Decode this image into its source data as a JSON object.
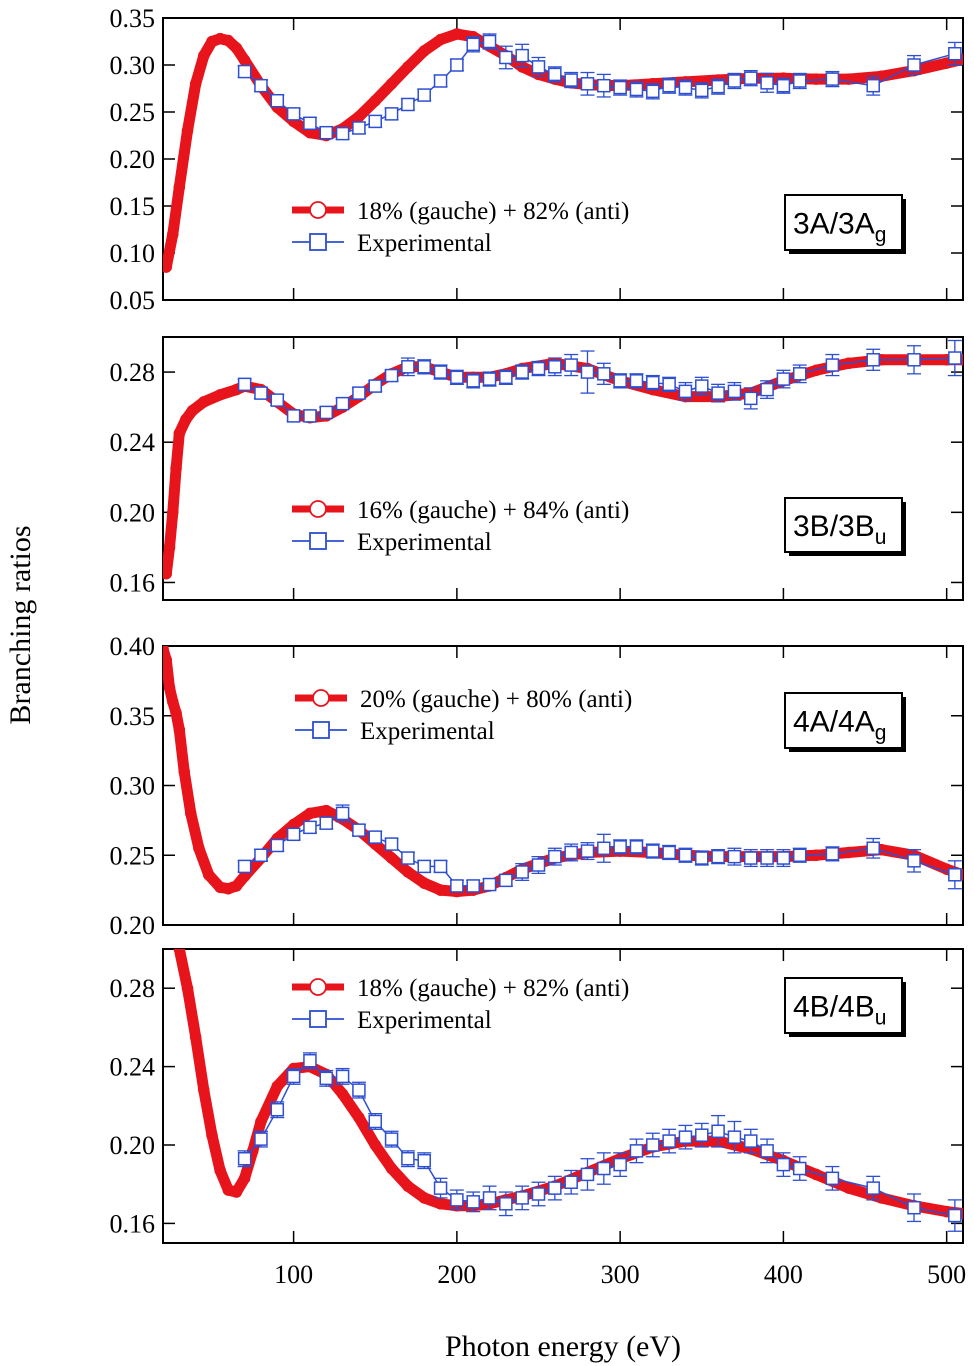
{
  "figure": {
    "ylabel": "Branching ratios",
    "xlabel": "Photon energy (eV)",
    "x_ticks": [
      100,
      200,
      300,
      400,
      500
    ],
    "xlim": [
      20,
      510
    ]
  },
  "colors": {
    "theory": "#e8141c",
    "experimental": "#2d4fd1",
    "frame": "#000000"
  },
  "chart_data": [
    {
      "type": "line",
      "panel": "3A/3Ag",
      "label_main": "3A/3A",
      "label_sub": "g",
      "ylim": [
        0.05,
        0.35
      ],
      "y_ticks": [
        "0.05",
        "0.10",
        "0.15",
        "0.20",
        "0.25",
        "0.30",
        "0.35"
      ],
      "legend_position": "center",
      "series": [
        {
          "name": "18% (gauche) + 82% (anti)",
          "marker": "circle",
          "x": [
            22,
            26,
            30,
            35,
            40,
            45,
            50,
            55,
            60,
            65,
            70,
            80,
            90,
            100,
            110,
            120,
            130,
            140,
            150,
            160,
            170,
            180,
            190,
            200,
            210,
            220,
            230,
            240,
            250,
            260,
            270,
            280,
            300,
            320,
            340,
            360,
            380,
            400,
            420,
            440,
            460,
            480,
            500,
            510
          ],
          "values": [
            0.085,
            0.12,
            0.17,
            0.23,
            0.28,
            0.31,
            0.325,
            0.328,
            0.326,
            0.318,
            0.305,
            0.278,
            0.255,
            0.24,
            0.228,
            0.225,
            0.232,
            0.245,
            0.262,
            0.28,
            0.298,
            0.315,
            0.327,
            0.333,
            0.33,
            0.32,
            0.31,
            0.298,
            0.29,
            0.285,
            0.281,
            0.279,
            0.278,
            0.28,
            0.282,
            0.284,
            0.286,
            0.286,
            0.285,
            0.285,
            0.288,
            0.294,
            0.302,
            0.306
          ]
        },
        {
          "name": "Experimental",
          "marker": "square",
          "x": [
            70,
            80,
            90,
            100,
            110,
            120,
            130,
            140,
            150,
            160,
            170,
            180,
            190,
            200,
            210,
            220,
            230,
            240,
            250,
            260,
            270,
            280,
            290,
            300,
            310,
            320,
            330,
            340,
            350,
            360,
            370,
            380,
            390,
            400,
            410,
            430,
            455,
            480,
            505
          ],
          "values": [
            0.293,
            0.278,
            0.262,
            0.248,
            0.238,
            0.228,
            0.227,
            0.233,
            0.24,
            0.248,
            0.258,
            0.268,
            0.283,
            0.3,
            0.322,
            0.325,
            0.308,
            0.31,
            0.298,
            0.29,
            0.284,
            0.28,
            0.278,
            0.276,
            0.274,
            0.272,
            0.278,
            0.276,
            0.273,
            0.277,
            0.283,
            0.286,
            0.281,
            0.278,
            0.283,
            0.285,
            0.278,
            0.3,
            0.312
          ],
          "errors": [
            0.006,
            0.006,
            0.006,
            0.006,
            0.006,
            0.006,
            0.006,
            0.006,
            0.006,
            0.006,
            0.006,
            0.006,
            0.006,
            0.006,
            0.008,
            0.008,
            0.012,
            0.012,
            0.01,
            0.008,
            0.008,
            0.012,
            0.012,
            0.008,
            0.008,
            0.008,
            0.008,
            0.008,
            0.008,
            0.008,
            0.008,
            0.008,
            0.01,
            0.008,
            0.008,
            0.008,
            0.01,
            0.01,
            0.012
          ]
        }
      ]
    },
    {
      "type": "line",
      "panel": "3B/3Bu",
      "label_main": "3B/3B",
      "label_sub": "u",
      "ylim": [
        0.15,
        0.3
      ],
      "y_ticks": [
        "0.16",
        "0.20",
        "0.24",
        "0.28"
      ],
      "legend_position": "center",
      "series": [
        {
          "name": "16% (gauche) + 84% (anti)",
          "marker": "circle",
          "x": [
            22,
            24,
            26,
            28,
            30,
            34,
            38,
            45,
            55,
            65,
            70,
            80,
            90,
            100,
            110,
            120,
            130,
            140,
            150,
            160,
            170,
            180,
            190,
            200,
            210,
            220,
            230,
            240,
            260,
            280,
            300,
            320,
            340,
            360,
            380,
            400,
            420,
            440,
            460,
            480,
            500,
            510
          ],
          "values": [
            0.165,
            0.18,
            0.2,
            0.225,
            0.245,
            0.253,
            0.258,
            0.263,
            0.267,
            0.27,
            0.272,
            0.27,
            0.263,
            0.256,
            0.254,
            0.255,
            0.26,
            0.266,
            0.273,
            0.279,
            0.283,
            0.283,
            0.28,
            0.277,
            0.277,
            0.277,
            0.279,
            0.282,
            0.285,
            0.282,
            0.275,
            0.27,
            0.266,
            0.266,
            0.268,
            0.275,
            0.281,
            0.285,
            0.287,
            0.287,
            0.287,
            0.287
          ]
        },
        {
          "name": "Experimental",
          "marker": "square",
          "x": [
            70,
            80,
            90,
            100,
            110,
            120,
            130,
            140,
            150,
            160,
            170,
            180,
            190,
            200,
            210,
            220,
            230,
            240,
            250,
            260,
            270,
            280,
            290,
            300,
            310,
            320,
            330,
            340,
            350,
            360,
            370,
            380,
            390,
            400,
            410,
            430,
            455,
            480,
            505
          ],
          "values": [
            0.273,
            0.268,
            0.264,
            0.255,
            0.255,
            0.257,
            0.262,
            0.268,
            0.272,
            0.278,
            0.283,
            0.283,
            0.28,
            0.277,
            0.275,
            0.276,
            0.277,
            0.28,
            0.282,
            0.283,
            0.284,
            0.28,
            0.279,
            0.275,
            0.275,
            0.274,
            0.273,
            0.269,
            0.272,
            0.268,
            0.269,
            0.265,
            0.27,
            0.276,
            0.279,
            0.284,
            0.287,
            0.287,
            0.288
          ],
          "errors": [
            0.003,
            0.003,
            0.003,
            0.003,
            0.003,
            0.003,
            0.003,
            0.003,
            0.003,
            0.003,
            0.005,
            0.004,
            0.004,
            0.004,
            0.004,
            0.004,
            0.004,
            0.004,
            0.004,
            0.005,
            0.006,
            0.012,
            0.006,
            0.004,
            0.004,
            0.004,
            0.004,
            0.005,
            0.005,
            0.005,
            0.005,
            0.006,
            0.005,
            0.005,
            0.005,
            0.006,
            0.006,
            0.008,
            0.01
          ]
        }
      ]
    },
    {
      "type": "line",
      "panel": "4A/4Ag",
      "label_main": "4A/4A",
      "label_sub": "g",
      "ylim": [
        0.2,
        0.4
      ],
      "y_ticks": [
        "0.20",
        "0.25",
        "0.30",
        "0.35",
        "0.40"
      ],
      "legend_position": "top-center",
      "series": [
        {
          "name": "20% (gauche) + 80% (anti)",
          "marker": "circle",
          "x": [
            20,
            22,
            24,
            26,
            28,
            30,
            33,
            37,
            42,
            48,
            55,
            60,
            65,
            70,
            80,
            90,
            100,
            110,
            120,
            130,
            140,
            150,
            160,
            170,
            180,
            190,
            200,
            210,
            220,
            230,
            240,
            260,
            280,
            300,
            320,
            340,
            360,
            380,
            400,
            420,
            440,
            460,
            480,
            500,
            510
          ],
          "values": [
            0.398,
            0.39,
            0.37,
            0.36,
            0.352,
            0.34,
            0.31,
            0.28,
            0.255,
            0.236,
            0.227,
            0.226,
            0.228,
            0.235,
            0.248,
            0.262,
            0.272,
            0.28,
            0.282,
            0.276,
            0.268,
            0.258,
            0.248,
            0.238,
            0.23,
            0.225,
            0.224,
            0.225,
            0.228,
            0.234,
            0.24,
            0.248,
            0.252,
            0.253,
            0.252,
            0.25,
            0.249,
            0.249,
            0.249,
            0.25,
            0.252,
            0.254,
            0.25,
            0.24,
            0.236
          ]
        },
        {
          "name": "Experimental",
          "marker": "square",
          "x": [
            70,
            80,
            90,
            100,
            110,
            120,
            130,
            140,
            150,
            160,
            170,
            180,
            190,
            200,
            210,
            220,
            230,
            240,
            250,
            260,
            270,
            280,
            290,
            300,
            310,
            320,
            330,
            340,
            350,
            360,
            370,
            380,
            390,
            400,
            410,
            430,
            455,
            480,
            505
          ],
          "values": [
            0.242,
            0.25,
            0.257,
            0.265,
            0.27,
            0.273,
            0.28,
            0.268,
            0.263,
            0.258,
            0.248,
            0.242,
            0.242,
            0.228,
            0.228,
            0.229,
            0.232,
            0.238,
            0.243,
            0.249,
            0.252,
            0.253,
            0.255,
            0.256,
            0.256,
            0.253,
            0.252,
            0.25,
            0.248,
            0.249,
            0.249,
            0.248,
            0.248,
            0.248,
            0.25,
            0.251,
            0.255,
            0.246,
            0.236
          ],
          "errors": [
            0.004,
            0.004,
            0.004,
            0.004,
            0.004,
            0.004,
            0.006,
            0.004,
            0.004,
            0.004,
            0.004,
            0.004,
            0.004,
            0.004,
            0.004,
            0.004,
            0.004,
            0.006,
            0.006,
            0.006,
            0.006,
            0.006,
            0.01,
            0.005,
            0.005,
            0.005,
            0.005,
            0.005,
            0.005,
            0.005,
            0.006,
            0.006,
            0.006,
            0.006,
            0.005,
            0.005,
            0.007,
            0.008,
            0.01
          ]
        }
      ]
    },
    {
      "type": "line",
      "panel": "4B/4Bu",
      "label_main": "4B/4B",
      "label_sub": "u",
      "ylim": [
        0.15,
        0.3
      ],
      "y_ticks": [
        "0.16",
        "0.20",
        "0.24",
        "0.28"
      ],
      "legend_position": "top-center",
      "series": [
        {
          "name": "18% (gauche) + 82% (anti)",
          "marker": "circle",
          "x": [
            30,
            35,
            40,
            45,
            50,
            55,
            60,
            65,
            70,
            75,
            80,
            90,
            100,
            110,
            120,
            130,
            140,
            150,
            160,
            170,
            180,
            190,
            200,
            210,
            220,
            230,
            240,
            260,
            280,
            300,
            320,
            340,
            360,
            380,
            400,
            420,
            440,
            460,
            480,
            500,
            510
          ],
          "values": [
            0.3,
            0.28,
            0.255,
            0.228,
            0.205,
            0.187,
            0.177,
            0.176,
            0.183,
            0.197,
            0.212,
            0.23,
            0.239,
            0.24,
            0.236,
            0.226,
            0.214,
            0.2,
            0.188,
            0.179,
            0.173,
            0.17,
            0.169,
            0.169,
            0.17,
            0.172,
            0.174,
            0.179,
            0.186,
            0.193,
            0.199,
            0.202,
            0.202,
            0.198,
            0.192,
            0.185,
            0.178,
            0.173,
            0.169,
            0.166,
            0.165
          ]
        },
        {
          "name": "Experimental",
          "marker": "square",
          "x": [
            70,
            80,
            90,
            100,
            110,
            120,
            130,
            140,
            150,
            160,
            170,
            180,
            190,
            200,
            210,
            220,
            230,
            240,
            250,
            260,
            270,
            280,
            290,
            300,
            310,
            320,
            330,
            340,
            350,
            360,
            370,
            380,
            390,
            400,
            410,
            430,
            455,
            480,
            505
          ],
          "values": [
            0.193,
            0.203,
            0.218,
            0.235,
            0.243,
            0.234,
            0.235,
            0.228,
            0.212,
            0.203,
            0.193,
            0.192,
            0.178,
            0.172,
            0.171,
            0.173,
            0.17,
            0.173,
            0.175,
            0.178,
            0.181,
            0.185,
            0.188,
            0.19,
            0.197,
            0.2,
            0.202,
            0.204,
            0.205,
            0.207,
            0.204,
            0.202,
            0.197,
            0.19,
            0.188,
            0.183,
            0.178,
            0.168,
            0.164
          ],
          "errors": [
            0.004,
            0.004,
            0.004,
            0.004,
            0.004,
            0.004,
            0.004,
            0.004,
            0.004,
            0.004,
            0.004,
            0.004,
            0.005,
            0.005,
            0.005,
            0.006,
            0.006,
            0.006,
            0.006,
            0.006,
            0.006,
            0.008,
            0.008,
            0.006,
            0.006,
            0.006,
            0.006,
            0.006,
            0.006,
            0.008,
            0.008,
            0.006,
            0.006,
            0.006,
            0.006,
            0.006,
            0.006,
            0.007,
            0.008
          ]
        }
      ]
    }
  ]
}
